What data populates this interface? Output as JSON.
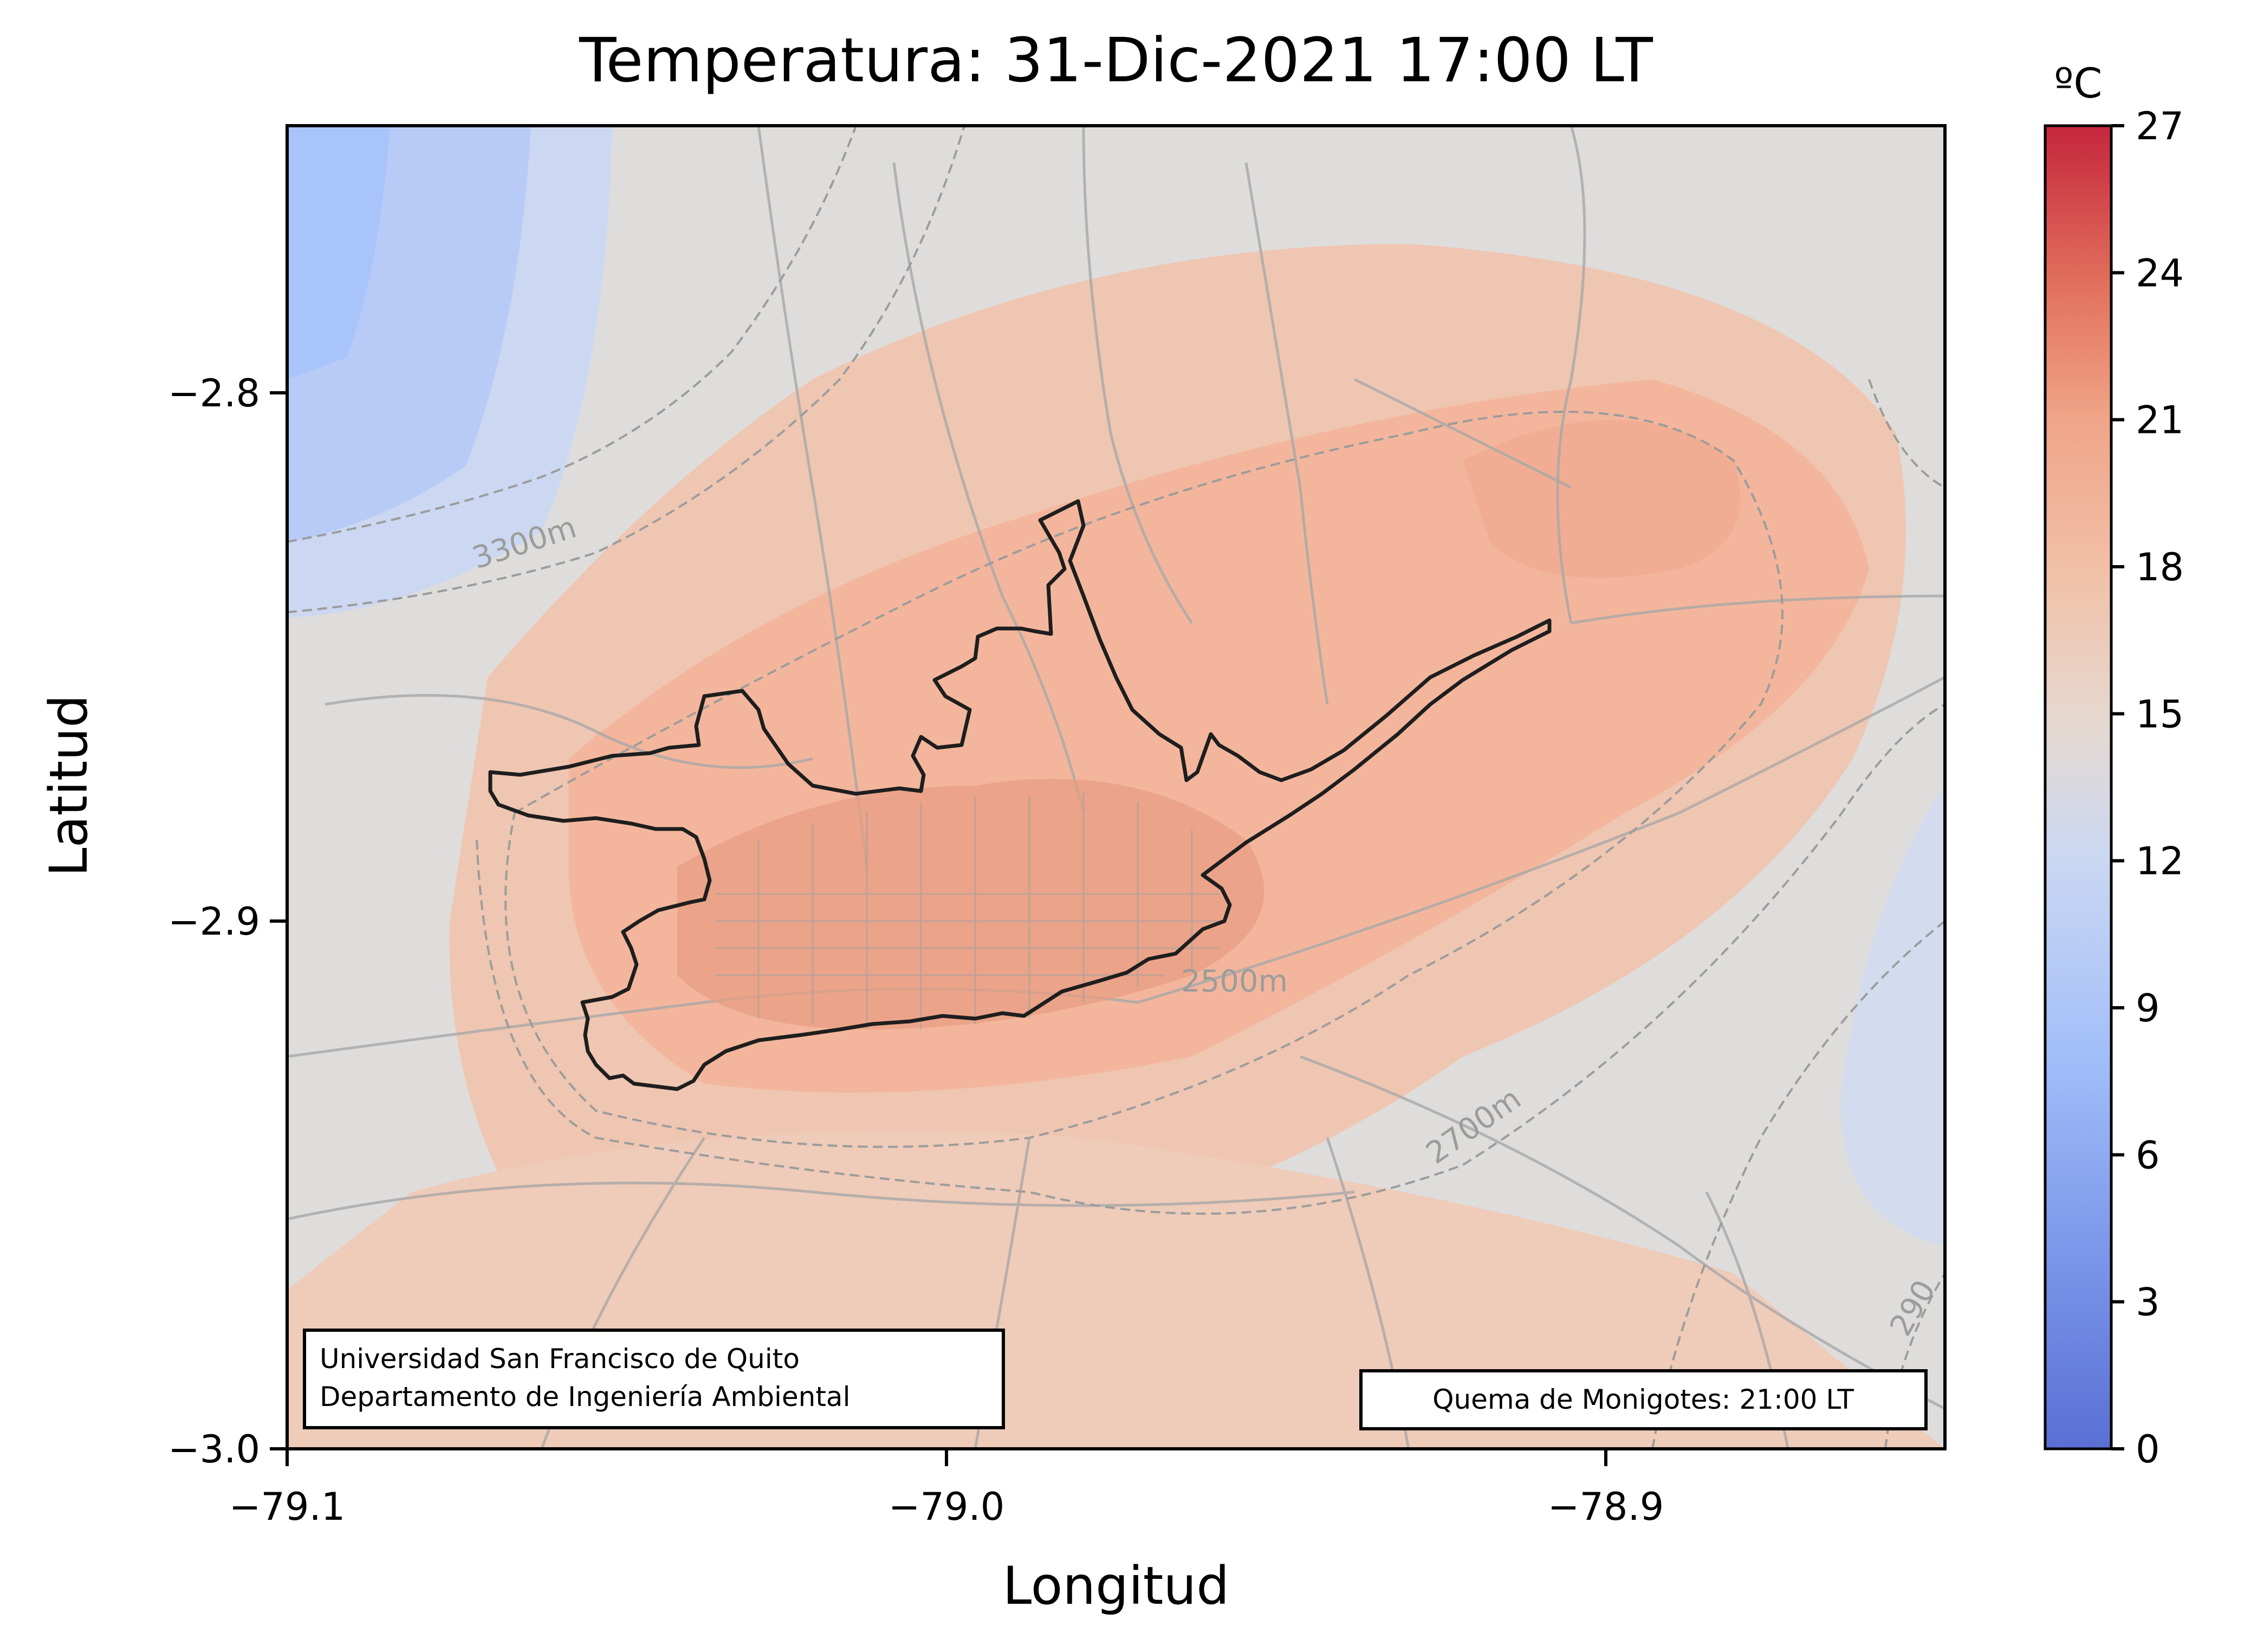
{
  "title": "Temperatura: 31-Dic-2021 17:00 LT",
  "xlabel": "Longitud",
  "ylabel": "Latitud",
  "colorbar": {
    "unit": "ºC",
    "ticks": [
      "0",
      "3",
      "6",
      "9",
      "12",
      "15",
      "18",
      "21",
      "24",
      "27"
    ],
    "range": [
      0,
      27
    ],
    "colormap": "coolwarm"
  },
  "x_ticks": [
    "−79.1",
    "−79.0",
    "−78.9"
  ],
  "y_ticks": [
    "−2.8",
    "−2.9",
    "−3.0"
  ],
  "contour_labels": [
    "3300m",
    "2500m",
    "2700m",
    "290"
  ],
  "credit_box": {
    "line1": "Universidad San Francisco de Quito",
    "line2": "Departamento de Ingeniería Ambiental"
  },
  "note_box": "Quema de Monigotes: 21:00 LT",
  "colors": {
    "cold": "#a9c4fb",
    "neutral": "#dedddc",
    "warm": "#f3b69c",
    "hot": "#c32a3a",
    "city_outline": "#1e1e1e",
    "roads": "#a8a8a8",
    "contours": "#9c9c9c"
  }
}
